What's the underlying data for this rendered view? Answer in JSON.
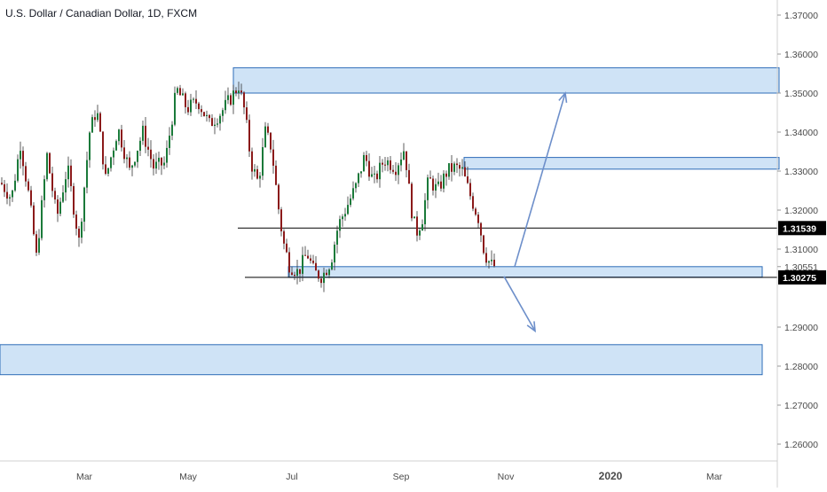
{
  "chart_data": {
    "type": "candlestick",
    "title": "U.S. Dollar / Canadian Dollar, 1D, FXCM",
    "colors": {
      "up": "#1b7a3a",
      "down": "#8b1a1a",
      "zone_fill": "#cfe3f6",
      "zone_stroke": "#2e6cb8",
      "arrow": "#6d8fca",
      "level_line": "#000000",
      "axis_text": "#4a4a4a"
    },
    "y_axis": {
      "position": "right",
      "ticks": [
        "1.37000",
        "1.36000",
        "1.35000",
        "1.34000",
        "1.33000",
        "1.32000",
        "1.31000",
        "1.30551",
        "1.29000",
        "1.28000",
        "1.27000",
        "1.26000"
      ],
      "ylim": [
        1.255,
        1.375
      ]
    },
    "x_axis": {
      "tick_labels": [
        "Mar",
        "May",
        "Jul",
        "Sep",
        "Nov",
        "2020",
        "Mar"
      ],
      "bold_labels": [
        "2020"
      ]
    },
    "price_labels": [
      {
        "value": 1.31539,
        "text": "1.31539"
      },
      {
        "value": 1.30275,
        "text": "1.30275"
      }
    ],
    "zones": [
      {
        "name": "upper-resistance",
        "y_low": 1.35,
        "y_high": 1.3565
      },
      {
        "name": "mid-resistance",
        "y_low": 1.3305,
        "y_high": 1.3335
      },
      {
        "name": "support",
        "y_low": 1.3028,
        "y_high": 1.3055
      },
      {
        "name": "lower-target",
        "y_low": 1.2778,
        "y_high": 1.2855
      }
    ],
    "horizontal_levels": [
      1.31539,
      1.30275
    ],
    "price_path": [
      [
        0,
        1.327
      ],
      [
        12,
        1.323
      ],
      [
        22,
        1.337
      ],
      [
        32,
        1.323
      ],
      [
        40,
        1.308
      ],
      [
        52,
        1.334
      ],
      [
        63,
        1.318
      ],
      [
        75,
        1.331
      ],
      [
        88,
        1.312
      ],
      [
        100,
        1.34
      ],
      [
        108,
        1.346
      ],
      [
        118,
        1.328
      ],
      [
        132,
        1.341
      ],
      [
        145,
        1.33
      ],
      [
        160,
        1.34
      ],
      [
        172,
        1.331
      ],
      [
        185,
        1.332
      ],
      [
        198,
        1.351
      ],
      [
        210,
        1.346
      ],
      [
        222,
        1.348
      ],
      [
        235,
        1.342
      ],
      [
        248,
        1.345
      ],
      [
        260,
        1.349
      ],
      [
        268,
        1.352
      ],
      [
        275,
        1.345
      ],
      [
        282,
        1.332
      ],
      [
        290,
        1.327
      ],
      [
        298,
        1.34
      ],
      [
        305,
        1.336
      ],
      [
        312,
        1.322
      ],
      [
        318,
        1.312
      ],
      [
        325,
        1.306
      ],
      [
        335,
        1.304
      ],
      [
        345,
        1.309
      ],
      [
        353,
        1.304
      ],
      [
        362,
        1.303
      ],
      [
        372,
        1.307
      ],
      [
        380,
        1.316
      ],
      [
        390,
        1.321
      ],
      [
        400,
        1.326
      ],
      [
        410,
        1.334
      ],
      [
        420,
        1.327
      ],
      [
        432,
        1.333
      ],
      [
        445,
        1.331
      ],
      [
        455,
        1.336
      ],
      [
        462,
        1.321
      ],
      [
        468,
        1.314
      ],
      [
        475,
        1.318
      ],
      [
        482,
        1.328
      ],
      [
        492,
        1.325
      ],
      [
        503,
        1.33
      ],
      [
        512,
        1.331
      ],
      [
        520,
        1.33
      ],
      [
        530,
        1.323
      ],
      [
        538,
        1.318
      ],
      [
        545,
        1.309
      ],
      [
        552,
        1.306
      ],
      [
        558,
        1.3055
      ]
    ],
    "arrows": [
      {
        "name": "bull-arrow",
        "from": [
          580,
          1.3055
        ],
        "to": [
          637,
          1.35
        ]
      },
      {
        "name": "bear-arrow",
        "from": [
          568,
          1.303
        ],
        "to": [
          603,
          1.289
        ]
      }
    ]
  }
}
